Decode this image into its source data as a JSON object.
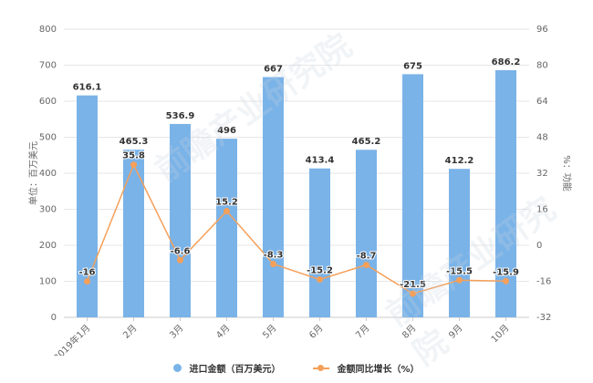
{
  "chart_data": {
    "type": "bar+line",
    "categories": [
      "2019年1月",
      "2月",
      "3月",
      "4月",
      "5月",
      "6月",
      "7月",
      "8月",
      "9月",
      "10月"
    ],
    "series": [
      {
        "name": "进口金额（百万美元）",
        "type": "bar",
        "axis": "left",
        "color": "#7ab3e8",
        "values": [
          616.1,
          465.3,
          536.9,
          496,
          667,
          413.4,
          465.2,
          675,
          412.2,
          686.2
        ]
      },
      {
        "name": "金额同比增长（%）",
        "type": "line",
        "axis": "right",
        "color": "#f5a05a",
        "values": [
          -16,
          35.8,
          -6.6,
          15.2,
          -8.3,
          -15.2,
          -8.7,
          -21.5,
          -15.5,
          -15.9
        ]
      }
    ],
    "left_axis": {
      "label": "单位：百万美元",
      "ticks": [
        0,
        100,
        200,
        300,
        400,
        500,
        600,
        700,
        800
      ],
      "ylim": [
        0,
        800
      ]
    },
    "right_axis": {
      "label": "%：功能",
      "ticks": [
        -32,
        -16,
        0,
        16,
        32,
        48,
        64,
        80,
        96
      ],
      "ylim": [
        -32,
        96
      ]
    },
    "grid": true,
    "legend_position": "bottom"
  },
  "labels": {
    "left_axis_title": "单位：百万美元",
    "right_axis_title": "%：功能",
    "legend_bar": "进口金额（百万美元）",
    "legend_line": "金额同比增长（%）",
    "watermark": "前瞻产业研究院"
  }
}
